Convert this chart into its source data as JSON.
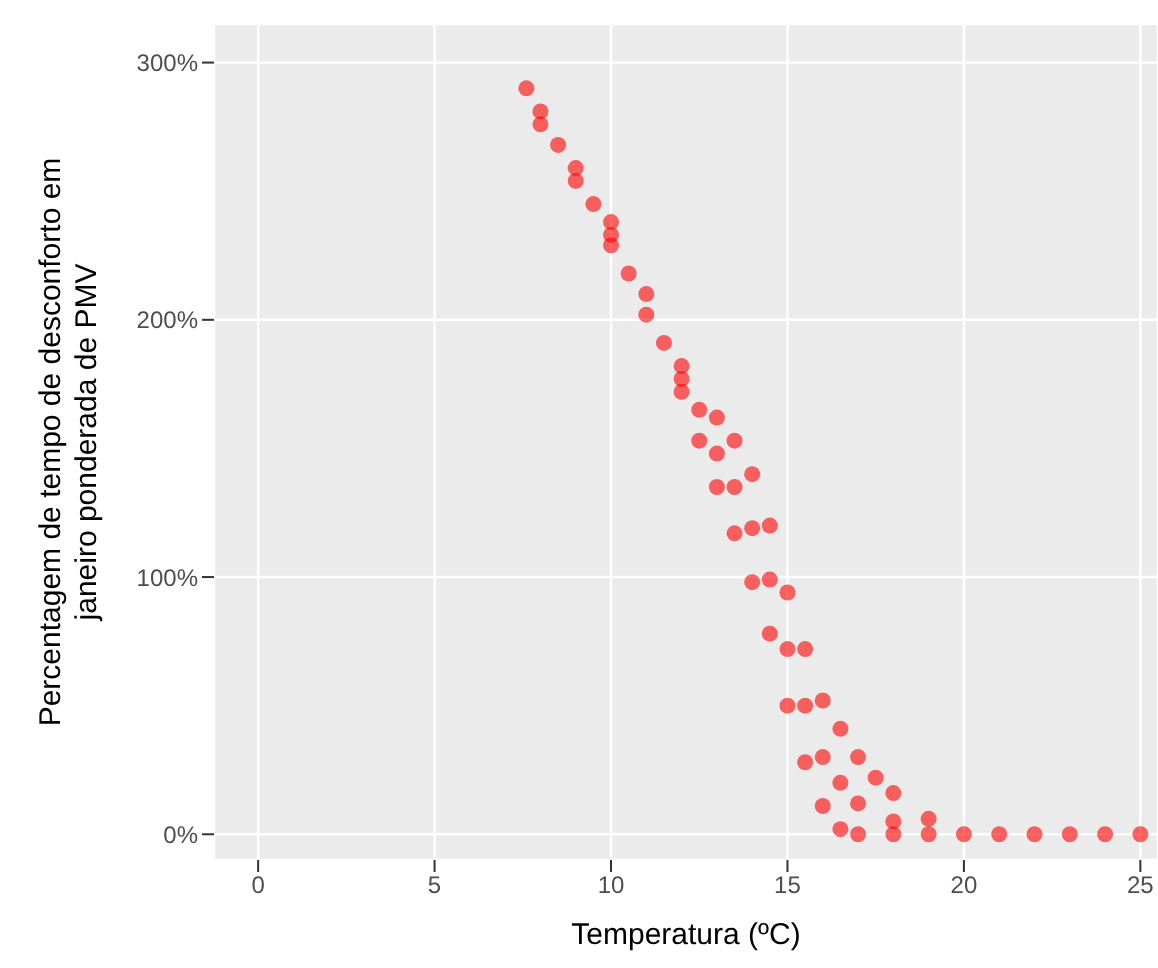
{
  "chart_data": {
    "type": "scatter",
    "xlabel": "Temperatura (ºC)",
    "ylabel": "Percentagem de tempo de desconforto em janeiro ponderada de PMV",
    "xlim": [
      -1.25,
      25.5
    ],
    "xticks": [
      0,
      5,
      10,
      15,
      20,
      25
    ],
    "ylim": [
      -10,
      315
    ],
    "yticks": [
      {
        "value": 0,
        "label": "0%"
      },
      {
        "value": 100,
        "label": "100%"
      },
      {
        "value": 200,
        "label": "200%"
      },
      {
        "value": 300,
        "label": "300%"
      }
    ],
    "grid": true,
    "marker": "circle",
    "series": [
      {
        "color": "#ff0000",
        "x": [
          7.6,
          8,
          9,
          10,
          11,
          12,
          13,
          13.5,
          14,
          14.5,
          15,
          15.5,
          16,
          16.5,
          17,
          17.5,
          18,
          19,
          8,
          9,
          10,
          11,
          12,
          12.5,
          13,
          13.5,
          14,
          14.5,
          15,
          15.5,
          16,
          16.5,
          17,
          18,
          19,
          20,
          21,
          22,
          23,
          24,
          25,
          10,
          12,
          13,
          14,
          15,
          16,
          17,
          18,
          8.5,
          9.5,
          10.5,
          11.5,
          12.5,
          13.5,
          14.5,
          15.5,
          16.5
        ],
        "values": [
          290,
          281,
          259,
          238,
          210,
          182,
          162,
          153,
          140,
          120,
          94,
          72,
          52,
          41,
          30,
          22,
          16,
          6,
          276,
          254,
          229,
          202,
          172,
          153,
          135,
          117,
          98,
          78,
          50,
          28,
          11,
          2,
          0,
          0,
          0,
          0,
          0,
          0,
          0,
          0,
          0,
          233,
          177,
          148,
          119,
          72,
          30,
          12,
          5,
          268,
          245,
          218,
          191,
          165,
          135,
          99,
          50,
          20
        ]
      }
    ]
  }
}
